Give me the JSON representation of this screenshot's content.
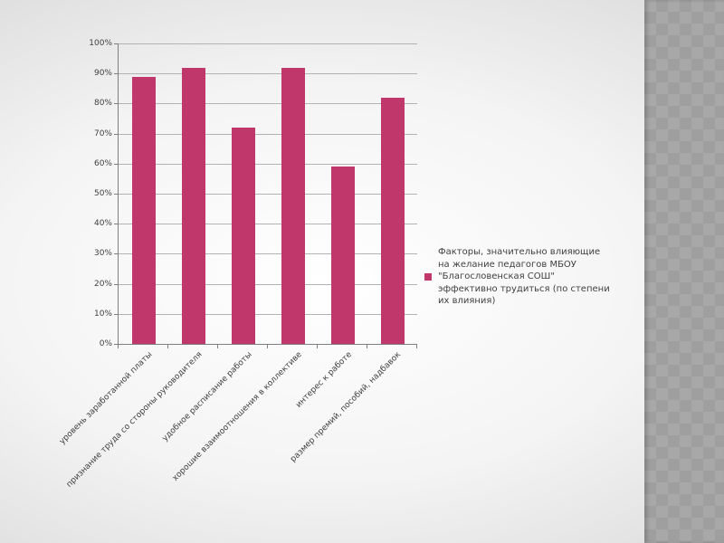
{
  "chart_data": {
    "type": "bar",
    "categories": [
      "уровень заработанной платы",
      "признание труда со стороны руководителя",
      "удобное расписание работы",
      "хорошие взаимоотношения в коллективе",
      "интерес к работе",
      "размер премий, пособий, надбавок"
    ],
    "values": [
      89,
      92,
      72,
      92,
      59,
      82
    ],
    "value_suffix": "%",
    "title": "",
    "xlabel": "",
    "ylabel": "",
    "ylim": [
      0,
      100
    ],
    "ytick_step": 10,
    "ytick_labels": [
      "0%",
      "10%",
      "20%",
      "30%",
      "40%",
      "50%",
      "60%",
      "70%",
      "80%",
      "90%",
      "100%"
    ],
    "grid": true,
    "bar_color": "#C0386B",
    "legend": {
      "position": "right",
      "marker_color": "#C0386B",
      "label": "Факторы, значительно влияющие на желание педагогов МБОУ \"Благословенская СОШ\" эффективно трудиться (по степени их влияния)"
    }
  }
}
